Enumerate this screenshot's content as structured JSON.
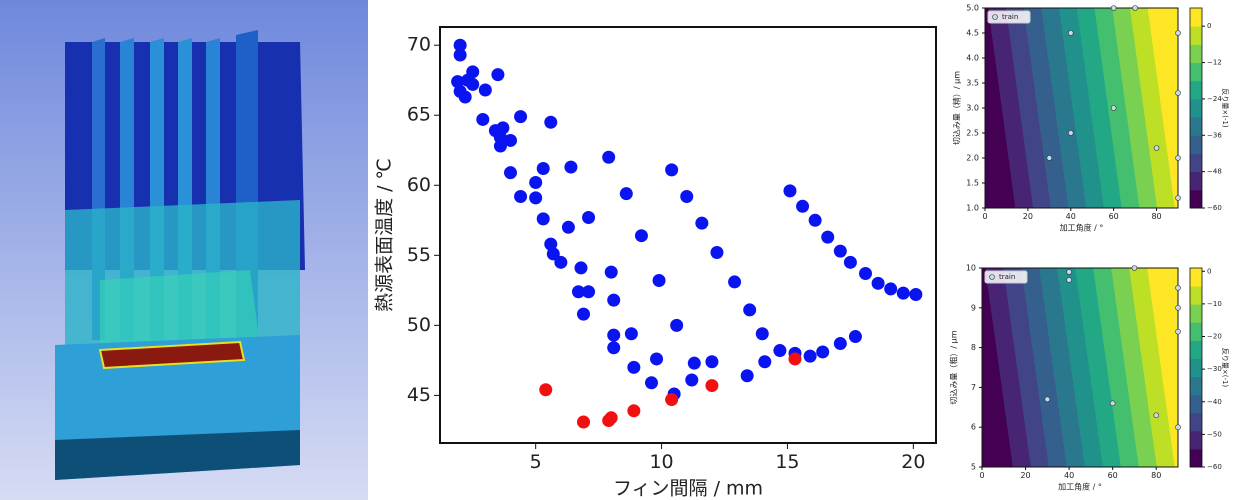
{
  "chart_data": [
    {
      "type": "scatter",
      "xlabel": "フィン間隔 / mm",
      "ylabel": "熱源表面温度 / ℃",
      "xlim": [
        1.2,
        20.9
      ],
      "ylim": [
        41.6,
        71.3
      ],
      "xticks": [
        5,
        10,
        15,
        20
      ],
      "yticks": [
        45,
        50,
        55,
        60,
        65,
        70
      ],
      "series": [
        {
          "color": "#0a14f0",
          "x": [
            2.0,
            2.0,
            1.9,
            2.3,
            2.5,
            2.0,
            2.2,
            2.5,
            3.0,
            3.5,
            2.9,
            3.4,
            3.6,
            3.7,
            3.6,
            4.0,
            4.4,
            5.6,
            4.0,
            4.4,
            5.0,
            5.0,
            5.3,
            6.4,
            7.9,
            10.4,
            5.3,
            7.1,
            8.6,
            11.0,
            11.6,
            15.1,
            15.6,
            16.1,
            16.6,
            17.1,
            17.5,
            18.1,
            18.6,
            19.1,
            19.6,
            20.1,
            6.3,
            5.6,
            5.7,
            6.0,
            9.2,
            12.2,
            6.8,
            8.0,
            9.9,
            12.9,
            6.7,
            7.1,
            6.9,
            8.1,
            10.6,
            13.5,
            8.1,
            8.8,
            8.1,
            14.0,
            14.7,
            14.1,
            15.3,
            15.9,
            16.4,
            17.1,
            17.7,
            9.8,
            8.9,
            11.3,
            12.0,
            9.6,
            11.2,
            13.4,
            10.5
          ],
          "y": [
            70.0,
            69.3,
            67.4,
            67.5,
            68.1,
            66.7,
            66.3,
            67.2,
            66.8,
            67.9,
            64.7,
            63.9,
            63.4,
            64.1,
            62.8,
            63.2,
            64.9,
            64.5,
            60.9,
            59.2,
            60.2,
            59.1,
            61.2,
            61.3,
            62.0,
            61.1,
            57.6,
            57.7,
            59.4,
            59.2,
            57.3,
            59.6,
            58.5,
            57.5,
            56.3,
            55.3,
            54.5,
            53.7,
            53.0,
            52.6,
            52.3,
            52.2,
            57.0,
            55.8,
            55.1,
            54.5,
            56.4,
            55.2,
            54.1,
            53.8,
            53.2,
            53.1,
            52.4,
            52.4,
            50.8,
            51.8,
            50.0,
            51.1,
            49.3,
            49.4,
            48.4,
            49.4,
            48.2,
            47.4,
            48.0,
            47.8,
            48.1,
            48.7,
            49.2,
            47.6,
            47.0,
            47.3,
            47.4,
            45.9,
            46.1,
            46.4,
            45.1
          ]
        },
        {
          "color": "#f01010",
          "x": [
            5.4,
            6.9,
            7.9,
            8.0,
            8.9,
            10.4,
            12.0,
            15.3
          ],
          "y": [
            45.4,
            43.1,
            43.2,
            43.4,
            43.9,
            44.7,
            45.7,
            47.6
          ]
        }
      ]
    },
    {
      "type": "contour",
      "xlabel": "加工角度 / °",
      "ylabel": "切込み量（精）/ μm",
      "colorbar_label": "反り量×(-1)",
      "xlim": [
        0,
        90
      ],
      "ylim": [
        1,
        5
      ],
      "xticks": [
        0,
        20,
        40,
        60,
        80
      ],
      "yticks": [
        {
          "value": 1,
          "label": "1.0"
        },
        {
          "value": 1.5,
          "label": "1.5"
        },
        {
          "value": 2,
          "label": "2.0"
        },
        {
          "value": 2.5,
          "label": "2.5"
        },
        {
          "value": 3,
          "label": "3.0"
        },
        {
          "value": 3.5,
          "label": "3.5"
        },
        {
          "value": 4,
          "label": "4.0"
        },
        {
          "value": 4.5,
          "label": "4.5"
        },
        {
          "value": 5,
          "label": "5.0"
        }
      ],
      "clim": [
        -60,
        6
      ],
      "cticks": [
        0,
        {
          "value": -12,
          "label": "−12"
        },
        {
          "value": -24,
          "label": "−24"
        },
        {
          "value": -36,
          "label": "−36"
        },
        {
          "value": -48,
          "label": "−48"
        },
        {
          "value": -60,
          "label": "−60"
        }
      ],
      "series": [
        {
          "name": "train",
          "color": "#c6dbef",
          "x": [
            40,
            60,
            40,
            30,
            60,
            70,
            90,
            90,
            80,
            90,
            90
          ],
          "y": [
            4.5,
            3.0,
            2.5,
            2.0,
            5.0,
            5.0,
            4.5,
            3.3,
            2.2,
            2.0,
            1.2
          ]
        }
      ]
    },
    {
      "type": "contour",
      "xlabel": "加工角度 / °",
      "ylabel": "切込み量（粗）/ μm",
      "colorbar_label": "反り量×(-1)",
      "xlim": [
        0,
        90
      ],
      "ylim": [
        5,
        10
      ],
      "xticks": [
        0,
        20,
        40,
        60,
        80
      ],
      "yticks": [
        5,
        6,
        7,
        8,
        9,
        10
      ],
      "clim": [
        -60,
        1
      ],
      "cticks": [
        0,
        {
          "value": -10,
          "label": "−10"
        },
        {
          "value": -20,
          "label": "−20"
        },
        {
          "value": -30,
          "label": "−30"
        },
        {
          "value": -40,
          "label": "−40"
        },
        {
          "value": -50,
          "label": "−50"
        },
        {
          "value": -60,
          "label": "−60"
        }
      ],
      "series": [
        {
          "name": "train",
          "color": "#c6dbef",
          "x": [
            40,
            40,
            70,
            90,
            90,
            90,
            30,
            60,
            80,
            90
          ],
          "y": [
            9.9,
            9.7,
            10,
            9.5,
            9.0,
            8.4,
            6.7,
            6.6,
            6.3,
            6.0
          ]
        }
      ]
    }
  ]
}
